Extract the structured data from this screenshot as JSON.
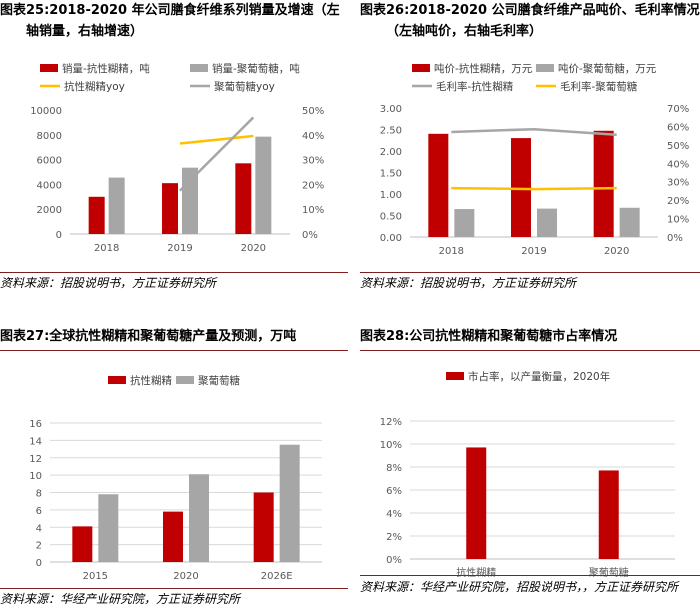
{
  "colors": {
    "red": "#c00000",
    "gray": "#a6a6a6",
    "yellow": "#ffc000",
    "rule": "#7f1f1f"
  },
  "panels": [
    {
      "title_l1": "图表25:2018-2020 年公司膳食纤维系列销量及增速（左",
      "title_l2": "轴销量，右轴增速）",
      "source": "资料来源：招股说明书，方正证券研究所"
    },
    {
      "title_l1": "图表26:2018-2020 公司膳食纤维产品吨价、毛利率情况",
      "title_l2": "（左轴吨价，右轴毛利率）",
      "source": "资料来源：招股说明书，方正证券研究所"
    },
    {
      "title_l1": "图表27:全球抗性糊精和聚葡萄糖产量及预测，万吨",
      "title_l2": "",
      "source": "资料来源：华经产业研究院，方正证券研究所"
    },
    {
      "title_l1": "图表28:公司抗性糊精和聚葡萄糖市占率情况",
      "title_l2": "",
      "source": "资料来源：华经产业研究院，招股说明书，，方正证券研究所"
    }
  ],
  "chart_data": [
    {
      "type": "bar",
      "categories": [
        "2018",
        "2019",
        "2020"
      ],
      "series": [
        {
          "name": "销量-抗性糊精，吨",
          "type": "bar",
          "axis": "left",
          "color": "#c00000",
          "values": [
            3000,
            4100,
            5700
          ]
        },
        {
          "name": "销量-聚葡萄糖，吨",
          "type": "bar",
          "axis": "left",
          "color": "#a6a6a6",
          "values": [
            4550,
            5350,
            7850
          ]
        },
        {
          "name": "抗性糊精yoy",
          "type": "line",
          "axis": "right",
          "color": "#ffc000",
          "values": [
            null,
            0.365,
            0.395
          ]
        },
        {
          "name": "聚葡萄糖yoy",
          "type": "line",
          "axis": "right",
          "color": "#a6a6a6",
          "values": [
            null,
            0.175,
            0.47
          ]
        }
      ],
      "y_left": {
        "min": 0,
        "max": 10000,
        "ticks": [
          "0",
          "2000",
          "4000",
          "6000",
          "8000",
          "10000"
        ]
      },
      "y_right": {
        "min": 0,
        "max": 0.5,
        "ticks": [
          "0%",
          "10%",
          "20%",
          "30%",
          "40%",
          "50%"
        ]
      },
      "legend": "top"
    },
    {
      "type": "bar",
      "categories": [
        "2018",
        "2019",
        "2020"
      ],
      "series": [
        {
          "name": "吨价-抗性糊精，万元",
          "type": "bar",
          "axis": "left",
          "color": "#c00000",
          "values": [
            2.4,
            2.3,
            2.47
          ]
        },
        {
          "name": "吨价-聚葡萄糖，万元",
          "type": "bar",
          "axis": "left",
          "color": "#a6a6a6",
          "values": [
            0.65,
            0.66,
            0.68
          ]
        },
        {
          "name": "毛利率-抗性糊精",
          "type": "line",
          "axis": "right",
          "color": "#a6a6a6",
          "values": [
            0.57,
            0.585,
            0.555
          ]
        },
        {
          "name": "毛利率-聚葡萄糖",
          "type": "line",
          "axis": "right",
          "color": "#ffc000",
          "values": [
            0.265,
            0.26,
            0.265
          ]
        }
      ],
      "y_left": {
        "min": 0,
        "max": 3,
        "ticks": [
          "0.00",
          "0.50",
          "1.00",
          "1.50",
          "2.00",
          "2.50",
          "3.00"
        ]
      },
      "y_right": {
        "min": 0,
        "max": 0.7,
        "ticks": [
          "0%",
          "10%",
          "20%",
          "30%",
          "40%",
          "50%",
          "60%",
          "70%"
        ]
      },
      "legend": "top"
    },
    {
      "type": "bar",
      "categories": [
        "2015",
        "2020",
        "2026E"
      ],
      "series": [
        {
          "name": "抗性糊精",
          "type": "bar",
          "axis": "left",
          "color": "#c00000",
          "values": [
            4.1,
            5.8,
            8.0
          ]
        },
        {
          "name": "聚葡萄糖",
          "type": "bar",
          "axis": "left",
          "color": "#a6a6a6",
          "values": [
            7.8,
            10.1,
            13.5
          ]
        }
      ],
      "y_left": {
        "min": 0,
        "max": 16,
        "ticks": [
          "0",
          "2",
          "4",
          "6",
          "8",
          "10",
          "12",
          "14",
          "16"
        ]
      },
      "legend": "top"
    },
    {
      "type": "bar",
      "categories": [
        "抗性糊精",
        "聚葡萄糖"
      ],
      "series": [
        {
          "name": "市占率，以产量衡量，2020年",
          "type": "bar",
          "axis": "left",
          "color": "#c00000",
          "values": [
            0.097,
            0.077
          ]
        }
      ],
      "y_left": {
        "min": 0,
        "max": 0.12,
        "ticks": [
          "0%",
          "2%",
          "4%",
          "6%",
          "8%",
          "10%",
          "12%"
        ]
      },
      "legend": "top"
    }
  ]
}
